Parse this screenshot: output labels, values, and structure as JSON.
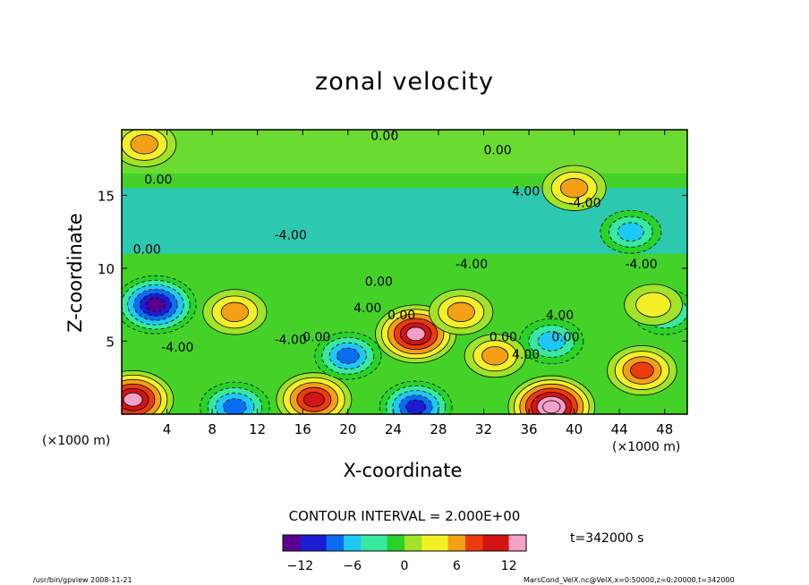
{
  "chart_data": {
    "type": "heatmap",
    "title": "zonal velocity",
    "xlabel": "X-coordinate",
    "ylabel": "Z-coordinate",
    "x_unit_note": "(×1000 m)",
    "xlim": [
      0,
      50
    ],
    "ylim": [
      0,
      19.5
    ],
    "x_ticks": [
      4,
      8,
      12,
      16,
      20,
      24,
      28,
      32,
      36,
      40,
      44,
      48
    ],
    "y_ticks": [
      5,
      10,
      15
    ],
    "contour_interval_text": "CONTOUR INTERVAL = 2.000E+00",
    "contour_labels": [
      "0.00",
      "0.00",
      "0.00",
      "4.00",
      "-4.00",
      "-4.00",
      "-4.00",
      "-4.00",
      "0.00",
      "0.00",
      "4.00",
      "4.00",
      "0.00",
      "0.00",
      "0.00",
      "-4.00",
      "-4.00",
      "0.00",
      "4.00"
    ],
    "colorbar": {
      "range": [
        -14,
        14
      ],
      "ticks": [
        -12,
        -6,
        0,
        6,
        12
      ],
      "tick_labels": [
        "−12",
        "−6",
        "0",
        "6",
        "12"
      ],
      "colors": [
        "#5a0090",
        "#1c1cd2",
        "#0a6cf0",
        "#1ec8f4",
        "#38e8a0",
        "#28d228",
        "#a2e228",
        "#f4f028",
        "#f4a014",
        "#ec3c0c",
        "#d21414",
        "#f4a0c8"
      ]
    },
    "time_label": "t=342000 s",
    "grid": false,
    "features": [
      {
        "x": 3,
        "z": 7.5,
        "value": -12
      },
      {
        "x": 10,
        "z": 7,
        "value": 6
      },
      {
        "x": 26,
        "z": 5.5,
        "value": 12
      },
      {
        "x": 30,
        "z": 7,
        "value": 6
      },
      {
        "x": 40,
        "z": 15.5,
        "value": 6
      },
      {
        "x": 38,
        "z": 0.5,
        "value": 14
      },
      {
        "x": 1,
        "z": 1,
        "value": 12
      },
      {
        "x": 17,
        "z": 1,
        "value": 10
      },
      {
        "x": 46,
        "z": 3,
        "value": 8
      },
      {
        "x": 20,
        "z": 4,
        "value": -7
      },
      {
        "x": 38,
        "z": 5,
        "value": -6
      },
      {
        "x": 45,
        "z": 12.5,
        "value": -5
      },
      {
        "x": 10,
        "z": 0.5,
        "value": -8
      },
      {
        "x": 26,
        "z": 0.5,
        "value": -9
      },
      {
        "x": 48,
        "z": 7,
        "value": -6
      },
      {
        "x": 2,
        "z": 18.5,
        "value": 6
      },
      {
        "x": 33,
        "z": 4,
        "value": 5
      },
      {
        "x": 47,
        "z": 7.5,
        "value": 4
      }
    ]
  },
  "footer": {
    "left": "/usr/bin/gpview  2008-11-21",
    "right": "MarsCond_VelX.nc@VelX,x=0:50000,z=0:20000,t=342000"
  }
}
